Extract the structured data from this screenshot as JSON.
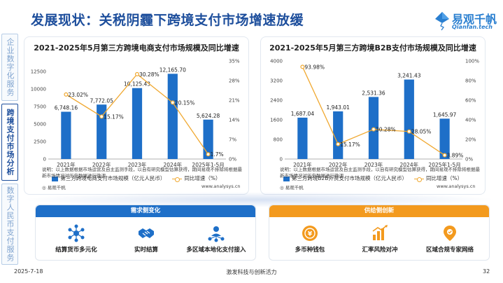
{
  "header": {
    "title": "发展现状：关税阴霾下跨境支付市场增速放缓",
    "brand_name": "易观千帆",
    "brand_sub": "Qianfan.tech"
  },
  "sidebar": {
    "items": [
      {
        "label": "企业数字化服务",
        "active": false
      },
      {
        "label": "跨境支付市场分析",
        "active": true
      },
      {
        "label": "数字人民币支付服务",
        "active": false
      }
    ]
  },
  "chart_data": [
    {
      "type": "bar",
      "title": "2021-2025年5月第三方跨境电商支付市场规模及同比增速",
      "categories": [
        "2021年",
        "2022年",
        "2023年",
        "2024年",
        "2025年1-5月"
      ],
      "series": [
        {
          "name": "第三方跨境电商支付市场规模（亿元人民币）",
          "type": "bar",
          "values": [
            6748.16,
            7772.05,
            10125.43,
            12165.7,
            5624.28
          ],
          "labels": [
            "6,748.16",
            "7,772.05",
            "10,125.43",
            "12,165.70",
            "5,624.28"
          ]
        },
        {
          "name": "同比增速（%）",
          "type": "line",
          "axis": "right",
          "values": [
            23.02,
            15.17,
            30.28,
            20.15,
            1.7
          ],
          "labels": [
            "23.02%",
            "15.17%",
            "30.28%",
            "20.15%",
            "1.7%"
          ]
        }
      ],
      "ylim": [
        0,
        14000
      ],
      "yticks": [
        0,
        2500,
        5000,
        7500,
        10000,
        12500
      ],
      "ytick_labels": [
        "0",
        "2500",
        "5000",
        "7500",
        "10000",
        "12500"
      ],
      "y2lim": [
        0,
        35
      ],
      "y2ticks": [
        0,
        7,
        14,
        21,
        28,
        35
      ],
      "y2tick_labels": [
        "0%",
        "7%",
        "14%",
        "21%",
        "28%",
        "35%"
      ],
      "note": "说明：以上数据根据市场运营及自主监测手段，以自有研究模型估算获得，期间易观不排除将根据最新市场情况对历史数据进行微调",
      "source_logo": "易观千帆",
      "source_url": "www.analysys.cn"
    },
    {
      "type": "bar",
      "title": "2021-2025年5月第三方跨境B2B支付市场规模及同比增速",
      "categories": [
        "2021年",
        "2022年",
        "2023年",
        "2024年",
        "2025年1-5月"
      ],
      "series": [
        {
          "name": "第三方跨境B2B外贸支付市场规模（亿元人民币）",
          "type": "bar",
          "values": [
            1687.04,
            1943.01,
            2531.36,
            3241.43,
            1645.97
          ],
          "labels": [
            "1,687.04",
            "1,943.01",
            "2,531.36",
            "3,241.43",
            "1,645.97"
          ]
        },
        {
          "name": "同比增速（%）",
          "type": "line",
          "axis": "right",
          "values": [
            93.98,
            15.17,
            30.28,
            28.05,
            3.89
          ],
          "labels": [
            "93.98%",
            "15.17%",
            "30.28%",
            "28.05%",
            "3.89%"
          ]
        }
      ],
      "ylim": [
        0,
        4000
      ],
      "yticks": [
        0,
        800,
        1600,
        2400,
        3200,
        4000
      ],
      "ytick_labels": [
        "0",
        "800",
        "1600",
        "2400",
        "3200",
        "4000"
      ],
      "y2lim": [
        0,
        100
      ],
      "y2ticks": [
        0,
        20,
        40,
        60,
        80,
        100
      ],
      "y2tick_labels": [
        "0%",
        "20%",
        "40%",
        "60%",
        "80%",
        "100%"
      ],
      "note": "说明：以上数据根据市场运营及自主监测手段，以自有研究模型估算获得，期间易观不排除将根据最新市场情况对历史数据进行微调",
      "source_logo": "易观千帆",
      "source_url": "www.analysys.cn"
    }
  ],
  "demand": {
    "title": "需求侧变化",
    "color": "#1e6fc8",
    "items": [
      {
        "label": "结算货币多元化",
        "icon": "network-icon"
      },
      {
        "label": "实时结算",
        "icon": "handshake-icon"
      },
      {
        "label": "多区域本地化支付接入",
        "icon": "people-network-icon"
      }
    ]
  },
  "supply": {
    "title": "供给侧创新",
    "color": "#f39a1e",
    "items": [
      {
        "label": "多币种钱包",
        "icon": "coin-wallet-icon"
      },
      {
        "label": "汇率风险对冲",
        "icon": "chart-risk-icon"
      },
      {
        "label": "区域合规专家网络",
        "icon": "location-shield-icon"
      }
    ]
  },
  "footer": {
    "date": "2025-7-18",
    "center": "激发科技与创新活力",
    "page": "32"
  },
  "colors": {
    "bar": "#1e6fc8",
    "line": "#f0a830",
    "title": "#1d4e9c"
  }
}
